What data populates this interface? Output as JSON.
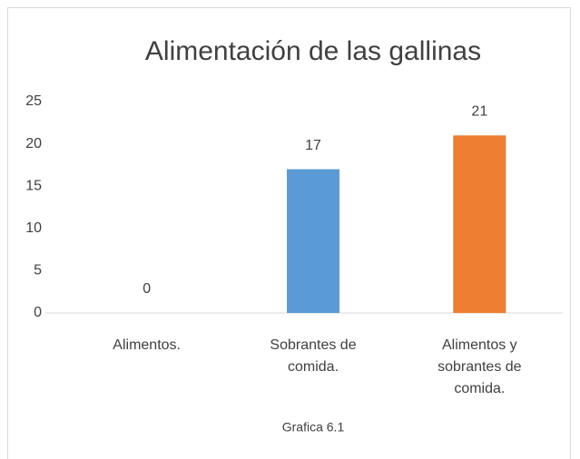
{
  "chart_data": {
    "type": "bar",
    "title": "Alimentación de las gallinas",
    "categories": [
      "Alimentos.",
      "Sobrantes de comida.",
      "Alimentos y sobrantes de comida."
    ],
    "values": [
      0,
      17,
      21
    ],
    "colors": [
      "#5b9bd5",
      "#5b9bd5",
      "#ed7d31"
    ],
    "ylim": [
      0,
      25
    ],
    "yticks": [
      0,
      5,
      10,
      15,
      20,
      25
    ],
    "grid": false,
    "caption": "Grafica 6.1"
  }
}
